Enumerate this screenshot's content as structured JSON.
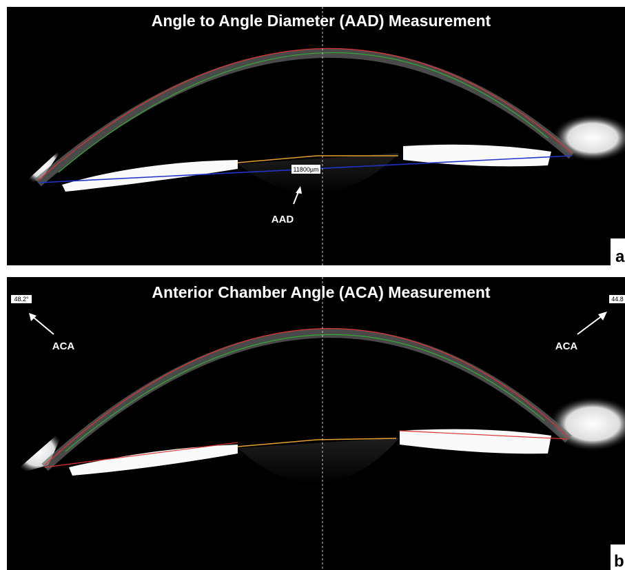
{
  "panels": [
    {
      "title": "Angle to Angle Diameter (AAD) Measurement",
      "measurement_label": "11800µm",
      "arrow_label": "AAD",
      "panel_letter": "a"
    },
    {
      "title": "Anterior Chamber Angle  (ACA) Measurement",
      "left_value": "48.2°",
      "right_value": "44.8",
      "left_arrow_label": "ACA",
      "right_arrow_label": "ACA",
      "panel_letter": "b"
    }
  ]
}
